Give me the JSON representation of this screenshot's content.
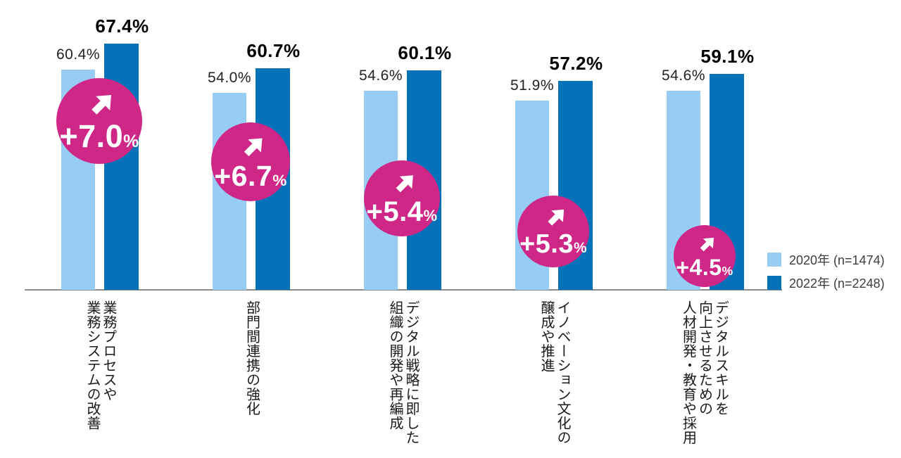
{
  "chart_data": {
    "type": "bar",
    "title": "",
    "xlabel": "",
    "ylabel": "",
    "ylim": [
      0,
      80
    ],
    "grid": false,
    "legend_position": "right",
    "axis_color": "#8c8c8c",
    "delta_color": "#ce2788",
    "categories": [
      "業務プロセスや\n業務システムの改善",
      "部門間連携の強化",
      "デジタル戦略に即した\n組織の開発や再編成",
      "イノベーション文化の\n醸成や推進",
      "デジタルスキルを\n向上させるための\n人材開発・教育や採用"
    ],
    "series": [
      {
        "name": "2020年 (n=1474)",
        "color": "#97cdf4",
        "values": [
          60.4,
          54.0,
          54.6,
          51.9,
          54.6
        ]
      },
      {
        "name": "2022年 (n=2248)",
        "color": "#0571b8",
        "values": [
          67.4,
          60.7,
          60.1,
          57.2,
          59.1
        ]
      }
    ],
    "value_labels": {
      "s2020": [
        "60.4%",
        "54.0%",
        "54.6%",
        "51.9%",
        "54.6%"
      ],
      "s2022": [
        "67.4%",
        "60.7%",
        "60.1%",
        "57.2%",
        "59.1%"
      ]
    },
    "delta_values": [
      7.0,
      6.7,
      5.4,
      5.3,
      4.5
    ],
    "deltas": [
      {
        "value": "+7.0",
        "unit": "%"
      },
      {
        "value": "+6.7",
        "unit": "%"
      },
      {
        "value": "+5.4",
        "unit": "%"
      },
      {
        "value": "+5.3",
        "unit": "%"
      },
      {
        "value": "+4.5",
        "unit": "%"
      }
    ]
  },
  "legend": {
    "items": [
      {
        "label": "2020年 (n=1474)",
        "color": "#97cdf4"
      },
      {
        "label": "2022年 (n=2248)",
        "color": "#0571b8"
      }
    ]
  }
}
